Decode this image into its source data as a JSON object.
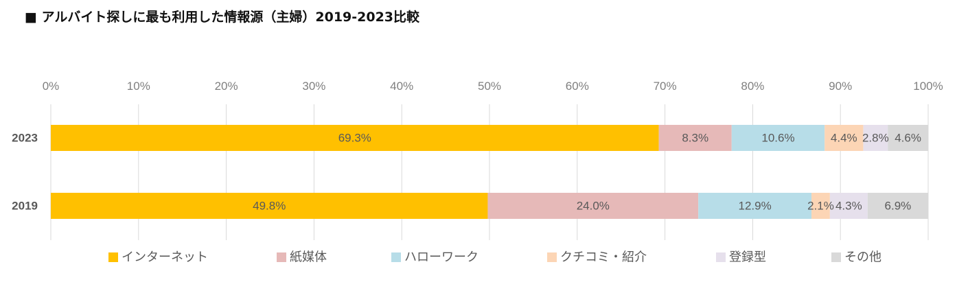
{
  "title": "■ アルバイト探しに最も利用した情報源（主婦）2019-2023比較",
  "chart_data": {
    "type": "bar",
    "orientation": "horizontal",
    "stacked": true,
    "percent_stacked": true,
    "title": "■ アルバイト探しに最も利用した情報源（主婦）2019-2023比較",
    "categories": [
      "2023",
      "2019"
    ],
    "xlim": [
      0,
      100
    ],
    "x_ticks": [
      "0%",
      "10%",
      "20%",
      "30%",
      "40%",
      "50%",
      "60%",
      "70%",
      "80%",
      "90%",
      "100%"
    ],
    "grid": true,
    "legend_position": "bottom",
    "series": [
      {
        "name": "インターネット",
        "color": "#FFC000",
        "values": [
          69.3,
          49.8
        ],
        "labels": [
          "69.3%",
          "49.8%"
        ]
      },
      {
        "name": "紙媒体",
        "color": "#E6B9B8",
        "values": [
          8.3,
          24.0
        ],
        "labels": [
          "8.3%",
          "24.0%"
        ]
      },
      {
        "name": "ハローワーク",
        "color": "#B7DDE8",
        "values": [
          10.6,
          12.9
        ],
        "labels": [
          "10.6%",
          "12.9%"
        ]
      },
      {
        "name": "クチコミ・紹介",
        "color": "#FCD5B5",
        "values": [
          4.4,
          2.1
        ],
        "labels": [
          "4.4%",
          "2.1%"
        ]
      },
      {
        "name": "登録型",
        "color": "#E6E0EC",
        "values": [
          2.8,
          4.3
        ],
        "labels": [
          "2.8%",
          "4.3%"
        ]
      },
      {
        "name": "その他",
        "color": "#D9D9D9",
        "values": [
          4.6,
          6.9
        ],
        "labels": [
          "4.6%",
          "6.9%"
        ]
      }
    ]
  }
}
